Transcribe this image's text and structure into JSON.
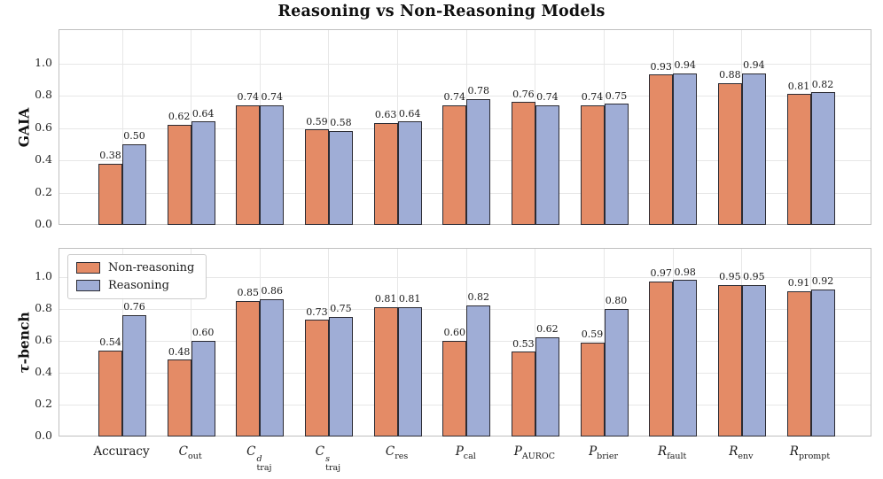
{
  "title": "Reasoning vs Non-Reasoning Models",
  "colors": {
    "non_reasoning": "#E48B66",
    "reasoning": "#9FADD6",
    "bar_edge": "#2B2B33",
    "grid": "#E7E7E7",
    "spine": "#BFBFBF",
    "text": "#1A1A1A"
  },
  "legend": {
    "items": [
      {
        "label": "Non-reasoning",
        "color_key": "non_reasoning"
      },
      {
        "label": "Reasoning",
        "color_key": "reasoning"
      }
    ]
  },
  "chart_data": {
    "type": "bar",
    "title": "Reasoning vs Non-Reasoning Models",
    "categories": [
      "Accuracy",
      "C_out",
      "C_traj^d",
      "C_traj^s",
      "C_res",
      "P_cal",
      "P_AUROC",
      "P_brier",
      "R_fault",
      "R_env",
      "R_prompt"
    ],
    "categories_rich": [
      {
        "base": "Accuracy",
        "sub": "",
        "sup": "",
        "italic": false
      },
      {
        "base": "C",
        "sub": "out",
        "sup": "",
        "italic": true
      },
      {
        "base": "C",
        "sub": "traj",
        "sup": "d",
        "italic": true
      },
      {
        "base": "C",
        "sub": "traj",
        "sup": "s",
        "italic": true
      },
      {
        "base": "C",
        "sub": "res",
        "sup": "",
        "italic": true
      },
      {
        "base": "P",
        "sub": "cal",
        "sup": "",
        "italic": true
      },
      {
        "base": "P",
        "sub": "AUROC",
        "sup": "",
        "italic": true
      },
      {
        "base": "P",
        "sub": "brier",
        "sup": "",
        "italic": true
      },
      {
        "base": "R",
        "sub": "fault",
        "sup": "",
        "italic": true
      },
      {
        "base": "R",
        "sub": "env",
        "sup": "",
        "italic": true
      },
      {
        "base": "R",
        "sub": "prompt",
        "sup": "",
        "italic": true
      }
    ],
    "yticks": [
      "0.0",
      "0.2",
      "0.4",
      "0.6",
      "0.8",
      "1.0"
    ],
    "ylim": [
      0,
      1.19
    ],
    "grid": true,
    "legend_position": "upper left of bottom panel",
    "panels": [
      {
        "ylabel": "GAIA",
        "series": [
          {
            "name": "Non-reasoning",
            "values": [
              0.38,
              0.62,
              0.74,
              0.59,
              0.63,
              0.74,
              0.76,
              0.74,
              0.93,
              0.88,
              0.81
            ]
          },
          {
            "name": "Reasoning",
            "values": [
              0.5,
              0.64,
              0.74,
              0.58,
              0.64,
              0.78,
              0.74,
              0.75,
              0.94,
              0.94,
              0.82
            ]
          }
        ]
      },
      {
        "ylabel": "τ-bench",
        "series": [
          {
            "name": "Non-reasoning",
            "values": [
              0.54,
              0.48,
              0.85,
              0.73,
              0.81,
              0.6,
              0.53,
              0.59,
              0.97,
              0.95,
              0.91
            ]
          },
          {
            "name": "Reasoning",
            "values": [
              0.76,
              0.6,
              0.86,
              0.75,
              0.81,
              0.82,
              0.62,
              0.8,
              0.98,
              0.95,
              0.92
            ]
          }
        ]
      }
    ]
  }
}
